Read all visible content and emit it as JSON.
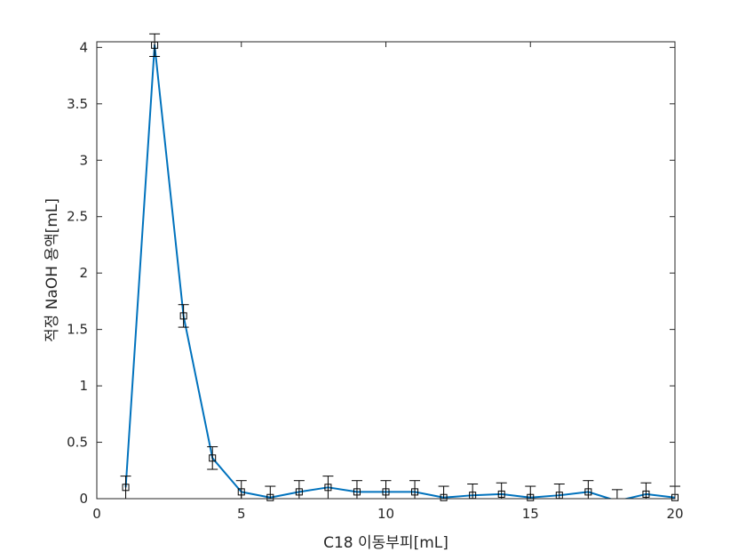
{
  "chart_data": {
    "type": "line",
    "title": "",
    "xlabel": "C18 이동부피[mL]",
    "ylabel": "적정 NaOH 용액[mL]",
    "xlim": [
      0,
      20
    ],
    "ylim": [
      0,
      4.05
    ],
    "xticks": [
      "0",
      "5",
      "10",
      "15",
      "20"
    ],
    "yticks": [
      "0",
      "0.5",
      "1",
      "1.5",
      "2",
      "2.5",
      "3",
      "3.5",
      "4"
    ],
    "grid": false,
    "line_color": "#0072BD",
    "marker_color": "#000000",
    "marker": "square",
    "series": [
      {
        "x": [
          1,
          2,
          3,
          4,
          5,
          6,
          7,
          8,
          9,
          10,
          11,
          12,
          13,
          14,
          15,
          16,
          17,
          18,
          19,
          20
        ],
        "values": [
          0.1,
          4.02,
          1.62,
          0.36,
          0.06,
          0.01,
          0.06,
          0.1,
          0.06,
          0.06,
          0.06,
          0.01,
          0.03,
          0.04,
          0.01,
          0.03,
          0.06,
          -0.02,
          0.04,
          0.01
        ],
        "error": [
          0.1,
          0.1,
          0.1,
          0.1,
          0.1,
          0.1,
          0.1,
          0.1,
          0.1,
          0.1,
          0.1,
          0.1,
          0.1,
          0.1,
          0.1,
          0.1,
          0.1,
          0.1,
          0.1,
          0.1
        ]
      }
    ]
  }
}
